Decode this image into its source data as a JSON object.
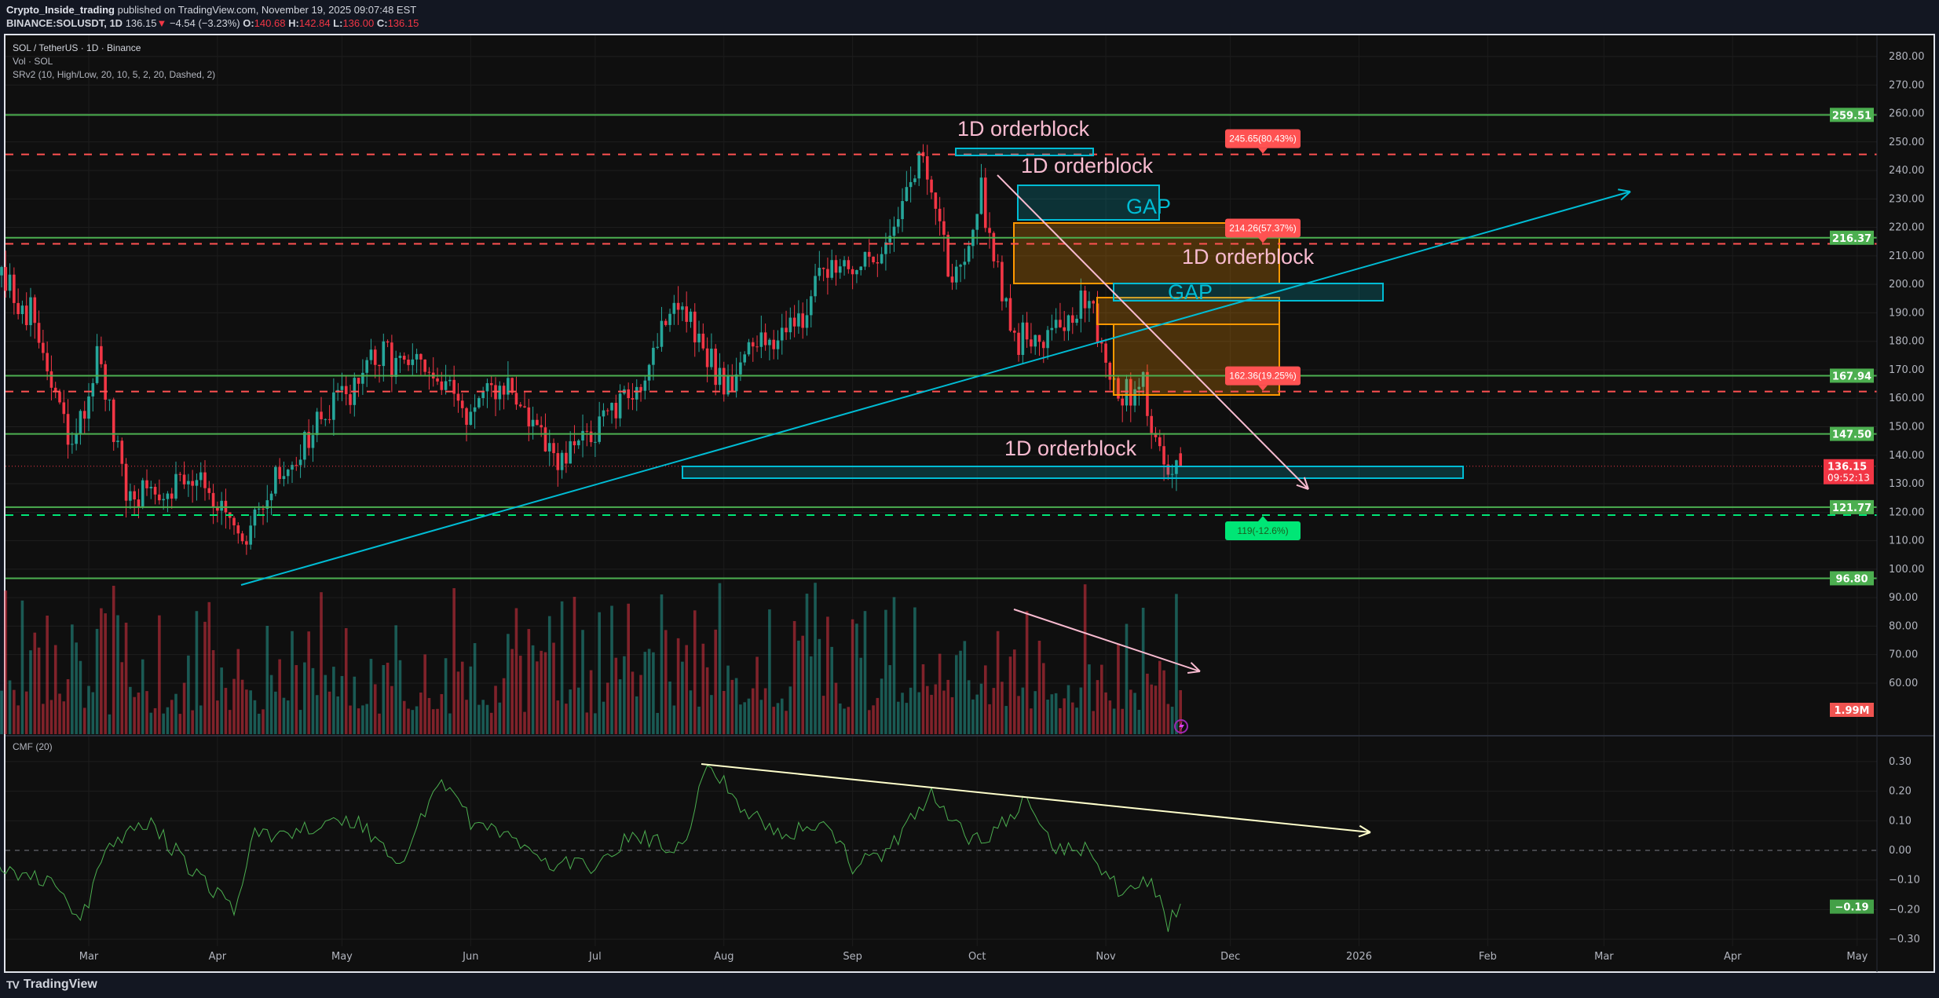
{
  "header": {
    "author": "Crypto_Inside_trading",
    "published": "published on TradingView.com, November 19, 2025 09:07:48 EST",
    "symbol": "BINANCE:SOLUSDT, 1D",
    "last": "136.15",
    "change_arrow": "▼",
    "change": "−4.54 (−3.23%)",
    "o_label": "O:",
    "o": "140.68",
    "h_label": "H:",
    "h": "142.84",
    "l_label": "L:",
    "l": "136.00",
    "c_label": "C:",
    "c": "136.15"
  },
  "legend": {
    "title": "SOL / TetherUS · 1D · Binance",
    "vol": "Vol · SOL",
    "srv2": "SRv2 (10, High/Low, 20, 10, 5, 2, 20, Dashed, 2)",
    "cmf": "CMF (20)"
  },
  "colors": {
    "up": "#26a69a",
    "down": "#f23645",
    "level": "#4caf50",
    "resistance_dashed": "#ff5252",
    "support_dashed": "#00e676",
    "orderblock": "#00bcd4",
    "orange_box": "#ff9800",
    "trendline_pink": "#f8bbd0",
    "cmf_line": "#4caf50",
    "cmf_trend": "#ffffcc",
    "label_pink": "#f8bbd0"
  },
  "chart_data": {
    "type": "candlestick",
    "title": "SOL / TetherUS · 1D · Binance",
    "x_ticks": [
      "Mar",
      "Apr",
      "May",
      "Jun",
      "Jul",
      "Aug",
      "Sep",
      "Oct",
      "Nov",
      "Dec",
      "2026",
      "Feb",
      "Mar",
      "Apr",
      "May"
    ],
    "price_ticks": [
      "280.00",
      "270.00",
      "260.00",
      "250.00",
      "240.00",
      "230.00",
      "220.00",
      "210.00",
      "200.00",
      "190.00",
      "180.00",
      "170.00",
      "160.00",
      "150.00",
      "140.00",
      "130.00",
      "120.00",
      "110.00",
      "100.00",
      "90.00",
      "80.00",
      "70.00",
      "60.00"
    ],
    "cmf_ticks": [
      "0.30",
      "0.20",
      "0.10",
      "0.00",
      "−0.10",
      "−0.20",
      "−0.30"
    ],
    "ylim": [
      60,
      280
    ],
    "cmf_ylim": [
      -0.3,
      0.3
    ],
    "approx_closes": [
      [
        "2025-02-05",
        205
      ],
      [
        "2025-02-15",
        190
      ],
      [
        "2025-02-25",
        140
      ],
      [
        "2025-03-03",
        175
      ],
      [
        "2025-03-10",
        125
      ],
      [
        "2025-03-20",
        130
      ],
      [
        "2025-03-28",
        135
      ],
      [
        "2025-04-07",
        105
      ],
      [
        "2025-04-12",
        125
      ],
      [
        "2025-04-25",
        150
      ],
      [
        "2025-05-10",
        175
      ],
      [
        "2025-05-20",
        170
      ],
      [
        "2025-06-01",
        155
      ],
      [
        "2025-06-10",
        165
      ],
      [
        "2025-06-22",
        135
      ],
      [
        "2025-07-01",
        150
      ],
      [
        "2025-07-10",
        160
      ],
      [
        "2025-07-20",
        195
      ],
      [
        "2025-08-01",
        165
      ],
      [
        "2025-08-10",
        180
      ],
      [
        "2025-08-20",
        190
      ],
      [
        "2025-08-28",
        210
      ],
      [
        "2025-09-05",
        205
      ],
      [
        "2025-09-18",
        245
      ],
      [
        "2025-09-25",
        200
      ],
      [
        "2025-10-02",
        232
      ],
      [
        "2025-10-10",
        180
      ],
      [
        "2025-10-20",
        185
      ],
      [
        "2025-10-28",
        195
      ],
      [
        "2025-11-04",
        160
      ],
      [
        "2025-11-10",
        165
      ],
      [
        "2025-11-14",
        140
      ],
      [
        "2025-11-19",
        136.15
      ]
    ],
    "last_candle": {
      "open": 140.68,
      "high": 142.84,
      "low": 136.0,
      "close": 136.15
    },
    "cmf_approx": [
      [
        "2025-02-05",
        -0.05
      ],
      [
        "2025-02-20",
        -0.1
      ],
      [
        "2025-02-27",
        -0.25
      ],
      [
        "2025-03-05",
        0.0
      ],
      [
        "2025-03-15",
        0.1
      ],
      [
        "2025-03-25",
        -0.05
      ],
      [
        "2025-04-05",
        -0.2
      ],
      [
        "2025-04-10",
        0.05
      ],
      [
        "2025-04-25",
        0.08
      ],
      [
        "2025-05-05",
        0.1
      ],
      [
        "2025-05-15",
        -0.05
      ],
      [
        "2025-05-25",
        0.25
      ],
      [
        "2025-06-01",
        0.1
      ],
      [
        "2025-06-10",
        0.05
      ],
      [
        "2025-06-20",
        -0.05
      ],
      [
        "2025-07-01",
        -0.05
      ],
      [
        "2025-07-10",
        0.05
      ],
      [
        "2025-07-22",
        0.0
      ],
      [
        "2025-07-28",
        0.31
      ],
      [
        "2025-08-05",
        0.15
      ],
      [
        "2025-08-15",
        0.05
      ],
      [
        "2025-08-25",
        0.1
      ],
      [
        "2025-09-01",
        -0.05
      ],
      [
        "2025-09-10",
        0.0
      ],
      [
        "2025-09-20",
        0.2
      ],
      [
        "2025-09-28",
        0.05
      ],
      [
        "2025-10-05",
        0.05
      ],
      [
        "2025-10-12",
        0.17
      ],
      [
        "2025-10-20",
        0.0
      ],
      [
        "2025-10-28",
        0.0
      ],
      [
        "2025-11-05",
        -0.15
      ],
      [
        "2025-11-12",
        -0.1
      ],
      [
        "2025-11-16",
        -0.25
      ],
      [
        "2025-11-19",
        -0.19
      ]
    ],
    "levels": [
      {
        "value": 259.51,
        "label": "259.51",
        "style": "solid"
      },
      {
        "value": 216.37,
        "label": "216.37",
        "style": "solid"
      },
      {
        "value": 167.94,
        "label": "167.94",
        "style": "solid"
      },
      {
        "value": 147.5,
        "label": "147.50",
        "style": "solid"
      },
      {
        "value": 121.77,
        "label": "121.77",
        "style": "solid"
      },
      {
        "value": 96.8,
        "label": "96.80",
        "style": "solid"
      }
    ],
    "targets": [
      {
        "value": 245.65,
        "label": "245.65(80.43%)",
        "kind": "resistance"
      },
      {
        "value": 214.26,
        "label": "214.26(57.37%)",
        "kind": "resistance"
      },
      {
        "value": 162.36,
        "label": "162.36(19.25%)",
        "kind": "resistance"
      },
      {
        "value": 119,
        "label": "119(-12.6%)",
        "kind": "support"
      }
    ],
    "current_price": {
      "label": "136.15",
      "countdown": "09:52:13"
    },
    "volume_last": "1.99M",
    "cmf_last": "−0.19",
    "annotations": {
      "orderblock": "1D orderblock",
      "gap": "GAP"
    }
  },
  "footer": {
    "brand": "TradingView",
    "logo": "TV"
  }
}
